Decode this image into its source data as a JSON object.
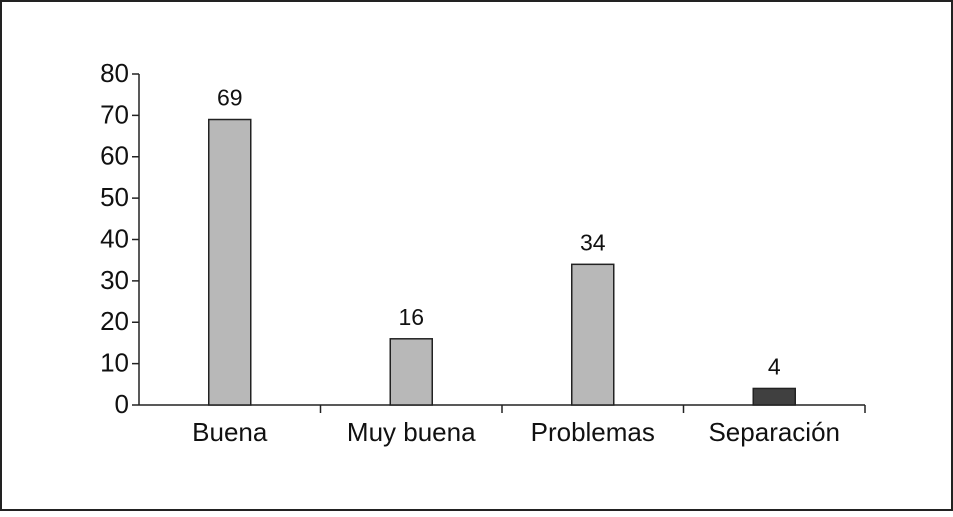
{
  "chart_data": {
    "type": "bar",
    "categories": [
      "Buena",
      "Muy buena",
      "Problemas",
      "Separación"
    ],
    "values": [
      69,
      16,
      34,
      4
    ],
    "colors": [
      "#b8b8b8",
      "#b8b8b8",
      "#b8b8b8",
      "#404040"
    ],
    "ylim": [
      0,
      80
    ],
    "yticks": [
      0,
      10,
      20,
      30,
      40,
      50,
      60,
      70,
      80
    ]
  }
}
